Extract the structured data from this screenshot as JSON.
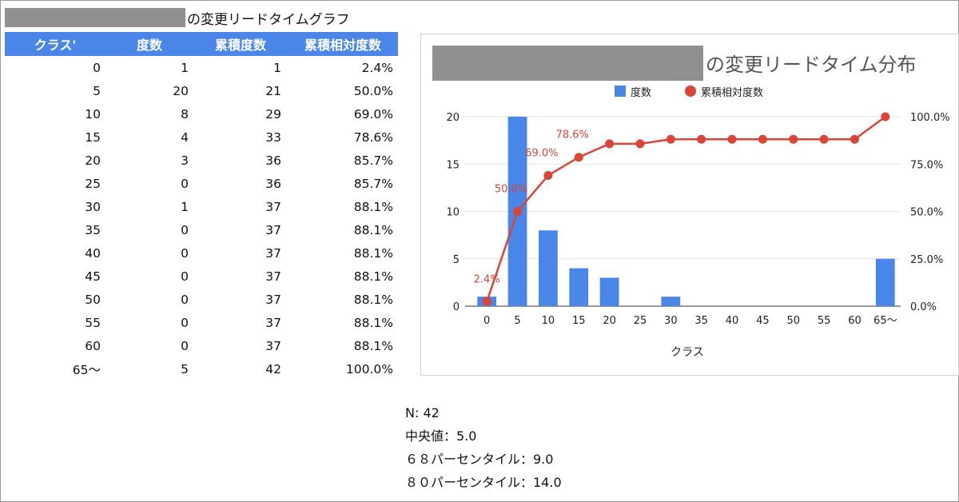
{
  "sheet": {
    "title_suffix": "の変更リードタイムグラフ"
  },
  "table": {
    "headers": [
      "クラス'",
      "度数",
      "累積度数",
      "累積相対度数"
    ],
    "rows": [
      [
        "0",
        "1",
        "1",
        "2.4%"
      ],
      [
        "5",
        "20",
        "21",
        "50.0%"
      ],
      [
        "10",
        "8",
        "29",
        "69.0%"
      ],
      [
        "15",
        "4",
        "33",
        "78.6%"
      ],
      [
        "20",
        "3",
        "36",
        "85.7%"
      ],
      [
        "25",
        "0",
        "36",
        "85.7%"
      ],
      [
        "30",
        "1",
        "37",
        "88.1%"
      ],
      [
        "35",
        "0",
        "37",
        "88.1%"
      ],
      [
        "40",
        "0",
        "37",
        "88.1%"
      ],
      [
        "45",
        "0",
        "37",
        "88.1%"
      ],
      [
        "50",
        "0",
        "37",
        "88.1%"
      ],
      [
        "55",
        "0",
        "37",
        "88.1%"
      ],
      [
        "60",
        "0",
        "37",
        "88.1%"
      ],
      [
        "65〜",
        "5",
        "42",
        "100.0%"
      ]
    ]
  },
  "chart_data": {
    "type": "bar",
    "title": "の変更リードタイム分布",
    "xlabel": "クラス",
    "categories": [
      "0",
      "5",
      "10",
      "15",
      "20",
      "25",
      "30",
      "35",
      "40",
      "45",
      "50",
      "55",
      "60",
      "65〜"
    ],
    "series": [
      {
        "name": "度数",
        "type": "bar",
        "axis": "left",
        "color": "#4a86e8",
        "values": [
          1,
          20,
          8,
          4,
          3,
          0,
          1,
          0,
          0,
          0,
          0,
          0,
          0,
          5
        ]
      },
      {
        "name": "累積相対度数",
        "type": "line",
        "axis": "right",
        "color": "#db4437",
        "values": [
          2.4,
          50.0,
          69.0,
          78.6,
          85.7,
          85.7,
          88.1,
          88.1,
          88.1,
          88.1,
          88.1,
          88.1,
          88.1,
          100.0
        ]
      }
    ],
    "ylim_left": [
      0,
      20
    ],
    "yticks_left": [
      "0",
      "5",
      "10",
      "15",
      "20"
    ],
    "ylim_right": [
      0,
      100
    ],
    "yticks_right": [
      "0.0%",
      "25.0%",
      "50.0%",
      "75.0%",
      "100.0%"
    ],
    "data_labels": [
      {
        "index": 0,
        "text": "2.4%"
      },
      {
        "index": 1,
        "text": "50.0%"
      },
      {
        "index": 2,
        "text": "69.0%"
      },
      {
        "index": 3,
        "text": "78.6%"
      }
    ],
    "legend": "top-center",
    "grid": true
  },
  "stats": {
    "n": "N: 42",
    "median": "中央値：5.0",
    "p68": "６８パーセンタイル：9.0",
    "p80": "８０パーセンタイル：14.0"
  }
}
